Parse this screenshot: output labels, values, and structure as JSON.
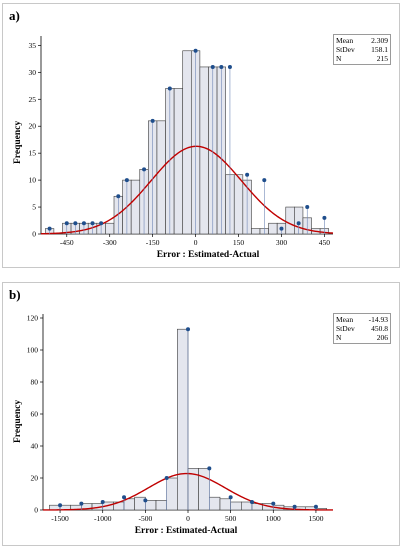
{
  "panels": [
    {
      "label": "a)",
      "stats": {
        "mean_label": "Mean",
        "mean_value": "2.309",
        "stdev_label": "StDev",
        "stdev_value": "158.1",
        "n_label": "N",
        "n_value": "215"
      }
    },
    {
      "label": "b)",
      "stats": {
        "mean_label": "Mean",
        "mean_value": "-14.93",
        "stdev_label": "StDev",
        "stdev_value": "450.8",
        "n_label": "N",
        "n_value": "206"
      }
    }
  ],
  "colors": {
    "bar_fill": "#e4e6ee",
    "bar_stroke": "#3a3a3a",
    "point": "#1f4e8c",
    "stem": "#6f86b6",
    "curve": "#c00000"
  },
  "chart_data": [
    {
      "type": "bar",
      "xlabel": "Error : Estimated-Actual",
      "ylabel": "Frequency",
      "xlim": [
        -540,
        480
      ],
      "ylim": [
        0,
        36
      ],
      "bin_width": 30,
      "x": [
        -510,
        -480,
        -450,
        -420,
        -390,
        -360,
        -330,
        -300,
        -270,
        -240,
        -210,
        -180,
        -150,
        -120,
        -90,
        -60,
        -30,
        0,
        30,
        60,
        90,
        120,
        150,
        180,
        210,
        240,
        270,
        300,
        330,
        360,
        390,
        420,
        450
      ],
      "values": [
        1,
        0,
        2,
        2,
        2,
        2,
        2,
        2,
        7,
        10,
        10,
        12,
        21,
        21,
        27,
        27,
        34,
        34,
        31,
        31,
        31,
        11,
        11,
        10,
        1,
        1,
        2,
        2,
        5,
        5,
        3,
        1,
        1
      ],
      "points_x": [
        -510,
        -450,
        -420,
        -390,
        -360,
        -330,
        -270,
        -240,
        -180,
        -150,
        -90,
        0,
        60,
        90,
        120,
        180,
        240,
        300,
        360,
        390,
        450
      ],
      "points_y": [
        1,
        2,
        2,
        2,
        2,
        2,
        7,
        10,
        12,
        21,
        27,
        34,
        31,
        31,
        31,
        11,
        10,
        1,
        2,
        5,
        3
      ],
      "xticks": [
        -450,
        -300,
        -150,
        0,
        150,
        300,
        450
      ],
      "yticks": [
        0,
        5,
        10,
        15,
        20,
        25,
        30,
        35
      ],
      "fit": {
        "mean": 2.309,
        "sd": 158.1,
        "n": 215
      }
    },
    {
      "type": "bar",
      "xlabel": "Error : Estimated-Actual",
      "ylabel": "Frequency",
      "xlim": [
        -1700,
        1700
      ],
      "ylim": [
        0,
        120
      ],
      "bin_width": 125,
      "x": [
        -1562.5,
        -1437.5,
        -1312.5,
        -1187.5,
        -1062.5,
        -937.5,
        -812.5,
        -687.5,
        -562.5,
        -437.5,
        -312.5,
        -187.5,
        -62.5,
        62.5,
        187.5,
        312.5,
        437.5,
        562.5,
        687.5,
        812.5,
        937.5,
        1062.5,
        1187.5,
        1312.5,
        1437.5,
        1562.5
      ],
      "values": [
        3,
        3,
        3,
        4,
        4,
        5,
        5,
        7,
        8,
        6,
        6,
        20,
        113,
        26,
        26,
        8,
        7,
        5,
        5,
        4,
        4,
        3,
        2,
        2,
        2,
        1
      ],
      "points_x": [
        -1500,
        -1250,
        -1000,
        -750,
        -500,
        -250,
        0,
        250,
        500,
        750,
        1000,
        1250,
        1500
      ],
      "points_y": [
        3,
        4,
        5,
        8,
        6,
        20,
        113,
        26,
        8,
        5,
        4,
        2,
        2
      ],
      "xticks": [
        -1500,
        -1000,
        -500,
        0,
        500,
        1000,
        1500
      ],
      "yticks": [
        0,
        20,
        40,
        60,
        80,
        100,
        120
      ],
      "fit": {
        "mean": -14.93,
        "sd": 450.8,
        "n": 206
      }
    }
  ]
}
